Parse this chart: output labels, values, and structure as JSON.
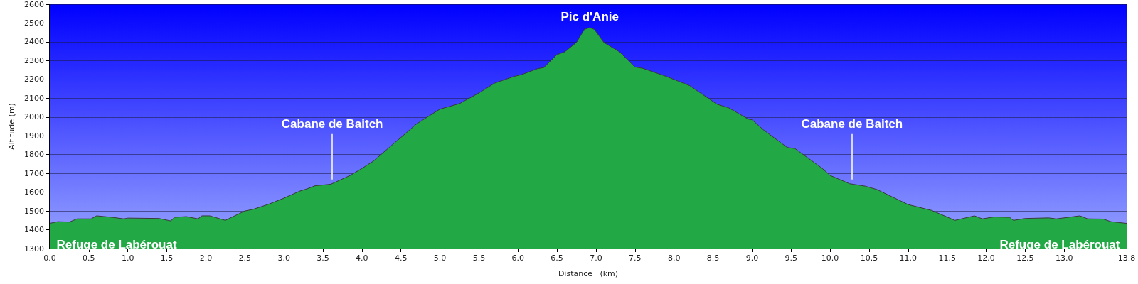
{
  "chart_data": {
    "type": "area",
    "xlabel": "Distance   (km)",
    "ylabel": "Altitude (m)",
    "x": [
      0,
      0.1,
      0.25,
      0.35,
      0.53,
      0.6,
      0.8,
      0.95,
      1.0,
      1.4,
      1.55,
      1.6,
      1.75,
      1.9,
      1.95,
      2.05,
      2.25,
      2.5,
      2.6,
      2.8,
      3.0,
      3.2,
      3.3,
      3.4,
      3.6,
      3.85,
      4.0,
      4.15,
      4.35,
      4.5,
      4.7,
      4.9,
      5.0,
      5.25,
      5.5,
      5.7,
      5.95,
      6.05,
      6.25,
      6.33,
      6.5,
      6.6,
      6.75,
      6.85,
      6.92,
      6.98,
      7.1,
      7.3,
      7.5,
      7.6,
      7.9,
      8.2,
      8.55,
      8.7,
      8.95,
      9.0,
      9.15,
      9.45,
      9.55,
      9.9,
      10.0,
      10.25,
      10.45,
      10.6,
      11.0,
      11.3,
      11.6,
      11.85,
      11.95,
      12.1,
      12.3,
      12.35,
      12.5,
      12.8,
      12.9,
      13.2,
      13.3,
      13.5,
      13.6,
      13.8
    ],
    "series": [
      {
        "color": "#22a844",
        "values": [
          1434,
          1443,
          1441,
          1458,
          1458,
          1474,
          1466,
          1458,
          1462,
          1460,
          1447,
          1466,
          1470,
          1458,
          1474,
          1474,
          1450,
          1500,
          1508,
          1535,
          1568,
          1605,
          1618,
          1634,
          1642,
          1689,
          1726,
          1766,
          1838,
          1891,
          1963,
          2016,
          2042,
          2071,
          2128,
          2180,
          2216,
          2226,
          2257,
          2263,
          2332,
          2347,
          2397,
          2466,
          2476,
          2466,
          2397,
          2347,
          2266,
          2259,
          2216,
          2167,
          2068,
          2049,
          1989,
          1985,
          1930,
          1838,
          1832,
          1726,
          1689,
          1645,
          1632,
          1614,
          1534,
          1503,
          1450,
          1474,
          1458,
          1468,
          1466,
          1450,
          1460,
          1463,
          1458,
          1474,
          1458,
          1457,
          1443,
          1434
        ]
      }
    ],
    "xlim": [
      0,
      13.8
    ],
    "xticks": [
      {
        "value": 0,
        "label": "0.0"
      },
      0.5,
      {
        "value": 1,
        "label": "1.0"
      },
      1.5,
      {
        "value": 2,
        "label": "2.0"
      },
      2.5,
      {
        "value": 3,
        "label": "3.0"
      },
      3.5,
      {
        "value": 4,
        "label": "4.0"
      },
      4.5,
      {
        "value": 5,
        "label": "5.0"
      },
      5.5,
      {
        "value": 6,
        "label": "6.0"
      },
      6.5,
      {
        "value": 7,
        "label": "7.0"
      },
      7.5,
      {
        "value": 8,
        "label": "8.0"
      },
      8.5,
      {
        "value": 9,
        "label": "9.0"
      },
      9.5,
      {
        "value": 10,
        "label": "10.0"
      },
      10.5,
      {
        "value": 11,
        "label": "11.0"
      },
      11.5,
      {
        "value": 12,
        "label": "12.0"
      },
      12.5,
      {
        "value": 13,
        "label": "13.0"
      },
      13.8
    ],
    "ylim": [
      1300,
      2600
    ],
    "yticks": [
      1300,
      1400,
      1500,
      1600,
      1700,
      1800,
      1900,
      2000,
      2100,
      2200,
      2300,
      2400,
      2500,
      2600
    ],
    "grid": "y",
    "marker": "none",
    "annotations": [
      {
        "text": "Refuge de Labérouat",
        "x": 0,
        "y": 1434
      },
      {
        "text": "Cabane de Baitch",
        "x": 3.62,
        "y": 1645
      },
      {
        "text": "Pic d'Anie",
        "x": 6.92,
        "y": 2476
      },
      {
        "text": "Cabane de Baitch",
        "x": 10.28,
        "y": 1645
      },
      {
        "text": "Refuge de Labérouat",
        "x": 13.8,
        "y": 1434
      }
    ]
  }
}
